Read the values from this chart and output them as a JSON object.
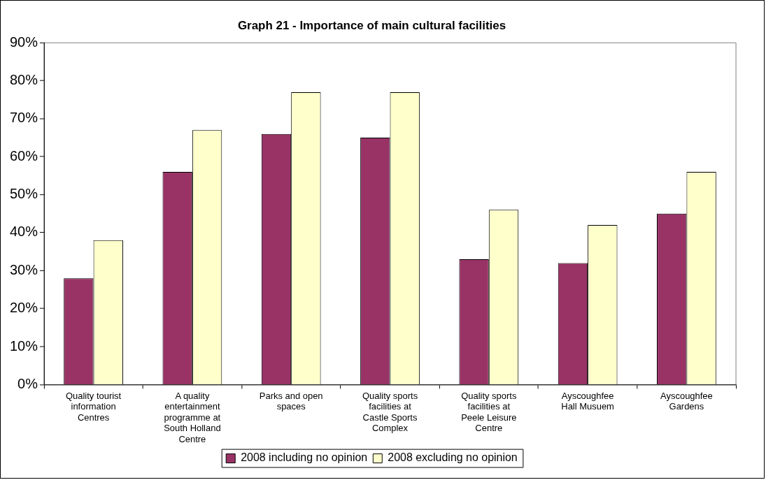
{
  "chart_data": {
    "type": "bar",
    "title": "Graph 21 - Importance of main cultural facilities",
    "categories": [
      "Quality tourist information Centres",
      "A quality entertainment programme at South Holland Centre",
      "Parks and open spaces",
      "Quality sports facilities at Castle Sports Complex",
      "Quality sports facilities at Peele Leisure Centre",
      "Ayscoughfee Hall Musuem",
      "Ayscoughfee Gardens"
    ],
    "series": [
      {
        "name": "2008 including no opinion",
        "color": "#993366",
        "values": [
          28,
          56,
          66,
          65,
          33,
          32,
          45
        ]
      },
      {
        "name": "2008 excluding no opinion",
        "color": "#ffffcc",
        "values": [
          38,
          67,
          77,
          77,
          46,
          42,
          56
        ]
      }
    ],
    "ylim": [
      0,
      90
    ],
    "yticks": [
      {
        "value": 0,
        "label": "0%"
      },
      {
        "value": 10,
        "label": "10%"
      },
      {
        "value": 20,
        "label": "20%"
      },
      {
        "value": 30,
        "label": "30%"
      },
      {
        "value": 40,
        "label": "40%"
      },
      {
        "value": 50,
        "label": "50%"
      },
      {
        "value": 60,
        "label": "60%"
      },
      {
        "value": 70,
        "label": "70%"
      },
      {
        "value": 80,
        "label": "80%"
      },
      {
        "value": 90,
        "label": "90%"
      }
    ],
    "grid": false,
    "legend": "bottom"
  }
}
